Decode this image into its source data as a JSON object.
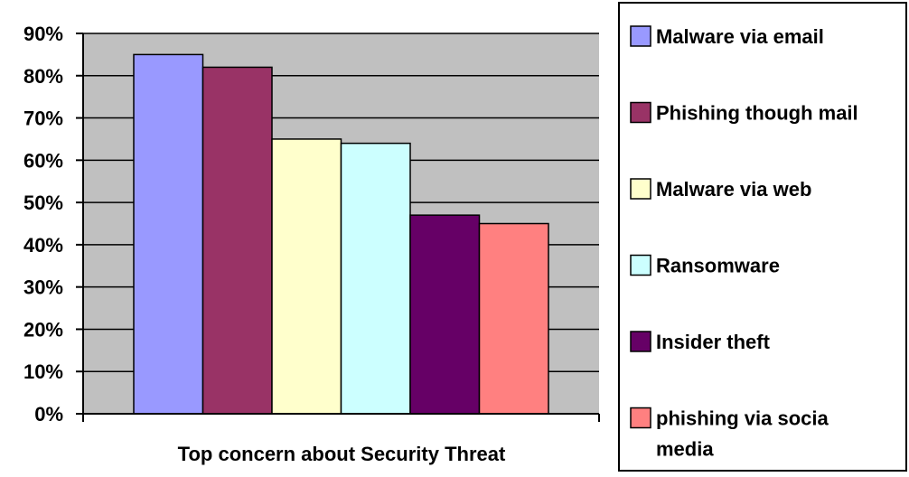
{
  "chart_data": {
    "type": "bar",
    "title": "",
    "xlabel": "Top concern about Security Threat",
    "ylabel": "",
    "ylim": [
      0,
      90
    ],
    "yticks": [
      "0%",
      "10%",
      "20%",
      "30%",
      "40%",
      "50%",
      "60%",
      "70%",
      "80%",
      "90%"
    ],
    "grid": true,
    "legend_position": "right",
    "plot_background": "#c0c0c0",
    "series": [
      {
        "name": "Malware via email",
        "value": 85,
        "color": "#9999ff"
      },
      {
        "name": "Phishing though mail",
        "value": 82,
        "color": "#993366"
      },
      {
        "name": "Malware via web",
        "value": 65,
        "color": "#ffffcc"
      },
      {
        "name": "Ransomware",
        "value": 64,
        "color": "#ccffff"
      },
      {
        "name": "Insider theft",
        "value": 47,
        "color": "#660066"
      },
      {
        "name": "phishing via socia media",
        "legend_lines": [
          "phishing via socia",
          "media"
        ],
        "value": 45,
        "color": "#ff8080"
      }
    ]
  }
}
